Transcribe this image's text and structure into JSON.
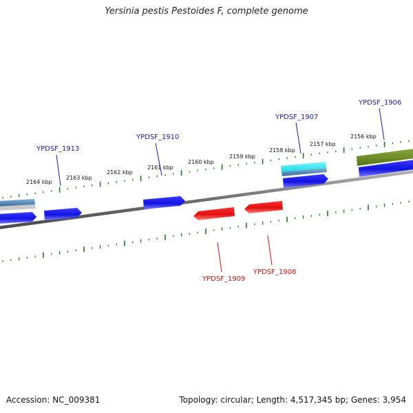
{
  "title": "Yersinia pestis Pestoides F, complete genome",
  "footer": {
    "accession": "Accession: NC_009381",
    "stats": "Topology: circular; Length: 4,517,345 bp; Genes: 3,954"
  },
  "colors": {
    "backbone": "#7a7a7a",
    "tick": "#1f7a1f",
    "forward_gene": "#1a1ae6",
    "reverse_gene": "#e61a1a",
    "forward_label": "#1a1aa6",
    "reverse_label": "#cc1111",
    "rna_cyan": "#22e5ee",
    "rna_steel": "#4a7fb0",
    "olive": "#6b8a22"
  },
  "scale": {
    "ticks": [
      {
        "label": "2164 kbp"
      },
      {
        "label": "2163 kbp"
      },
      {
        "label": "2162 kbp"
      },
      {
        "label": "2161 kbp"
      },
      {
        "label": "2160 kbp"
      },
      {
        "label": "2159 kbp"
      },
      {
        "label": "2158 kbp"
      },
      {
        "label": "2157 kbp"
      },
      {
        "label": "2156 kbp"
      }
    ]
  },
  "genes": {
    "forward_labels": [
      "YPDSF_1913",
      "YPDSF_1910",
      "YPDSF_1907",
      "YPDSF_1906"
    ],
    "reverse_labels": [
      "YPDSF_1909",
      "YPDSF_1908"
    ]
  }
}
